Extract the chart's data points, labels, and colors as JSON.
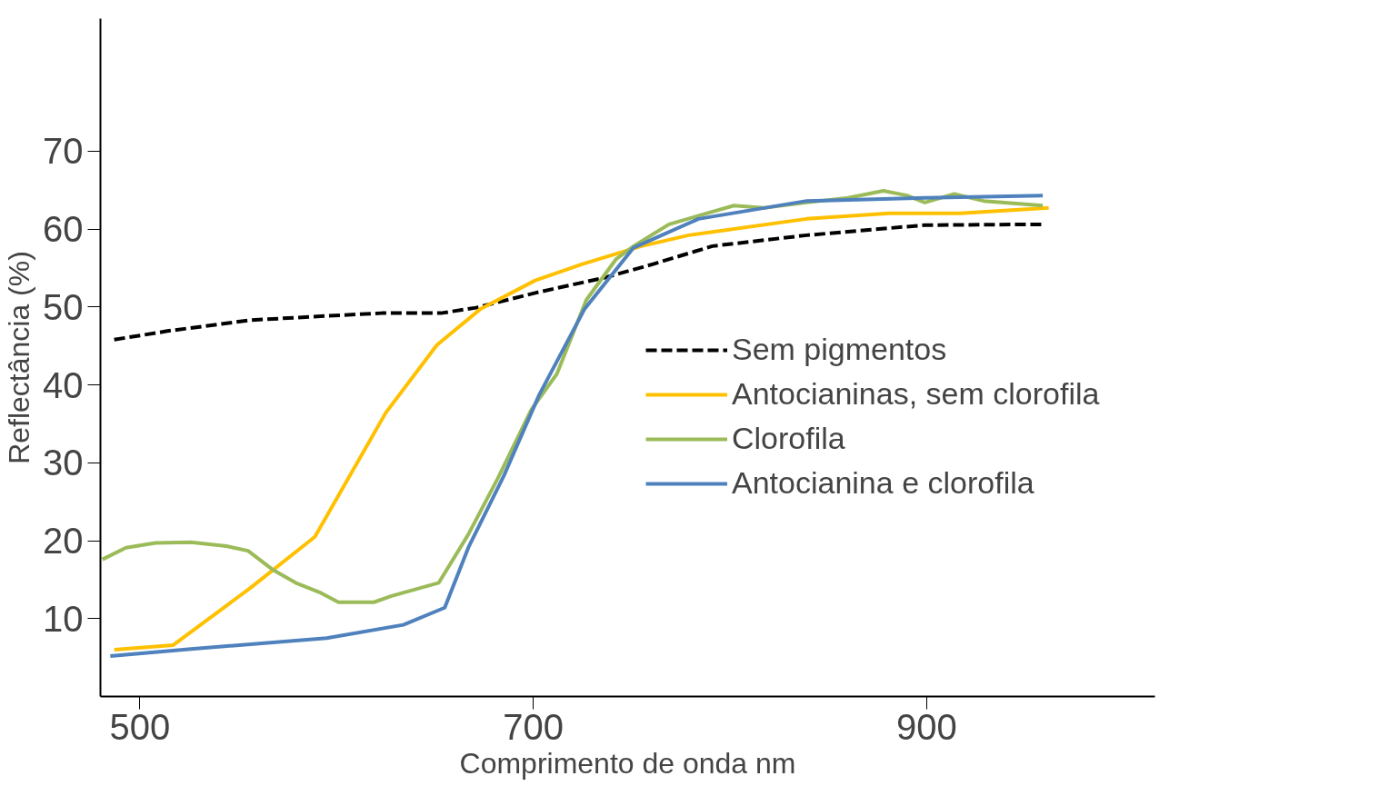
{
  "chart_data": {
    "type": "line",
    "xlabel": "Comprimento de onda nm",
    "ylabel": "Reflectância (%)",
    "xlim": [
      480,
      1016
    ],
    "ylim": [
      0,
      87
    ],
    "xticks": [
      500,
      700,
      900
    ],
    "yticks": [
      10,
      20,
      30,
      40,
      50,
      60,
      70
    ],
    "grid": false,
    "legend": "right",
    "marker": "none",
    "series": [
      {
        "name": "Sem pigmentos",
        "color": "#000000",
        "line_style": "dashed",
        "x": [
          487,
          514,
          556,
          592,
          623,
          653,
          671,
          701,
          737,
          761,
          791,
          839,
          899,
          959
        ],
        "values": [
          45.8,
          46.9,
          48.3,
          48.8,
          49.2,
          49.2,
          49.9,
          51.8,
          53.8,
          55.5,
          57.8,
          59.2,
          60.5,
          60.6
        ]
      },
      {
        "name": "Antocianinas, sem clorofila",
        "color": "#ffc000",
        "line_style": "solid",
        "x": [
          487,
          517,
          556,
          589,
          625,
          651,
          673,
          701,
          725,
          755,
          779,
          839,
          881,
          917,
          962
        ],
        "values": [
          6.0,
          6.6,
          13.9,
          20.5,
          36.4,
          45.1,
          49.7,
          53.4,
          55.5,
          57.8,
          59.2,
          61.3,
          62.0,
          62.0,
          62.7
        ]
      },
      {
        "name": "Clorofila",
        "color": "#9bbb59",
        "line_style": "solid",
        "x": [
          481,
          493,
          508,
          526,
          544,
          555,
          568,
          580,
          592,
          601,
          619,
          628,
          652,
          667,
          682,
          699,
          712,
          727,
          742,
          751,
          769,
          784,
          802,
          817,
          839,
          860,
          878,
          890,
          899,
          914,
          929,
          959
        ],
        "values": [
          17.6,
          19.1,
          19.7,
          19.8,
          19.3,
          18.7,
          16.2,
          14.5,
          13.3,
          12.1,
          12.1,
          12.9,
          14.6,
          20.8,
          28.0,
          36.8,
          41.4,
          50.9,
          56.1,
          57.8,
          60.6,
          61.7,
          63.0,
          62.7,
          63.4,
          64.0,
          64.9,
          64.3,
          63.4,
          64.5,
          63.6,
          63.0
        ]
      },
      {
        "name": "Antocianina e clorofila",
        "color": "#4f81bd",
        "line_style": "solid",
        "x": [
          485,
          526,
          595,
          634,
          655,
          667,
          685,
          703,
          726,
          751,
          784,
          839,
          899,
          959
        ],
        "values": [
          5.2,
          6.1,
          7.5,
          9.2,
          11.4,
          19.1,
          28.3,
          38.7,
          49.7,
          57.6,
          61.3,
          63.6,
          64.0,
          64.3
        ]
      }
    ]
  }
}
